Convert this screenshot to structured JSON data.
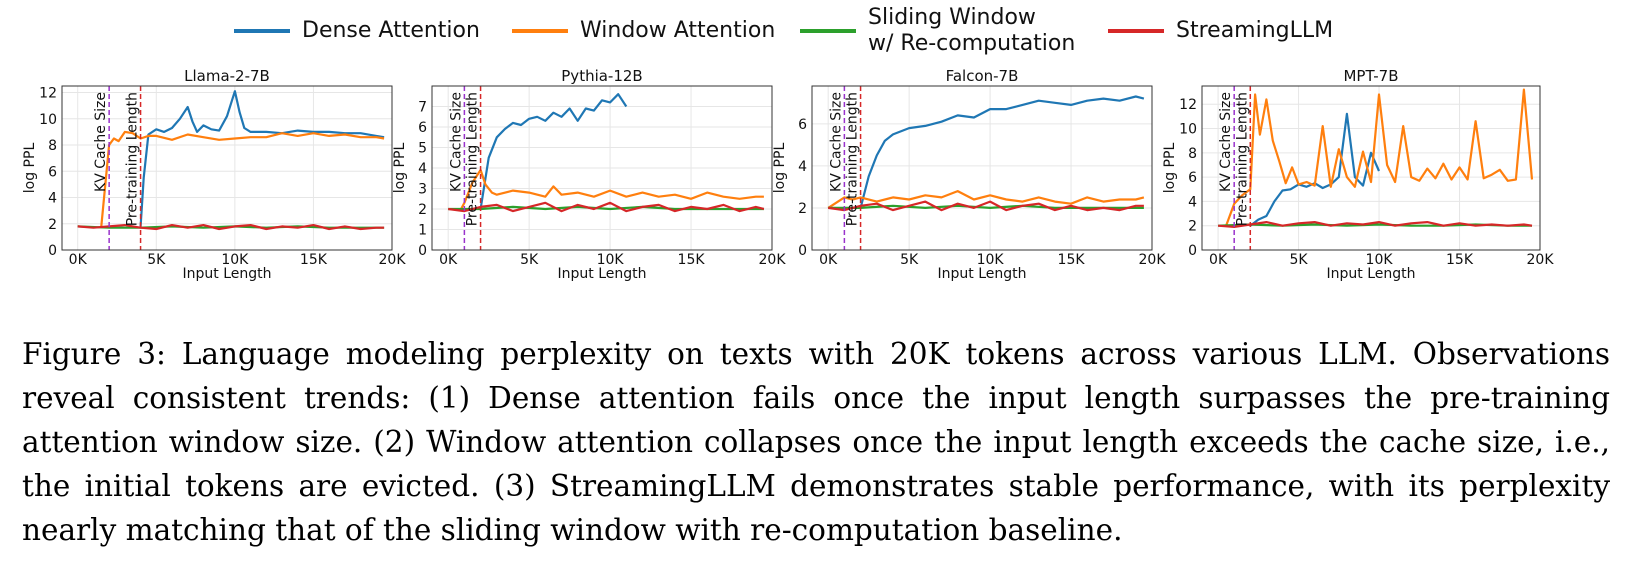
{
  "legend": [
    {
      "label": "Dense Attention",
      "color": "#1f77b4"
    },
    {
      "label": "Window Attention",
      "color": "#ff7f0e"
    },
    {
      "label": "Sliding Window\nw/ Re-computation",
      "color": "#2ca02c"
    },
    {
      "label": "StreamingLLM",
      "color": "#d62728"
    }
  ],
  "chart_data": [
    {
      "type": "line",
      "title": "Llama-2-7B",
      "xlabel": "Input Length",
      "ylabel": "log PPL",
      "xlim": [
        -1000,
        20000
      ],
      "ylim": [
        0,
        12.5
      ],
      "xticks": [
        0,
        5000,
        10000,
        15000,
        20000
      ],
      "xtick_labels": [
        "0K",
        "5K",
        "10K",
        "15K",
        "20K"
      ],
      "yticks": [
        0,
        2,
        4,
        6,
        8,
        10,
        12
      ],
      "ytick_labels": [
        "0",
        "2",
        "4",
        "6",
        "8",
        "10",
        "12"
      ],
      "grid": true,
      "vlines": [
        {
          "x": 2000,
          "label": "KV Cache Size",
          "color": "#9933cc"
        },
        {
          "x": 4000,
          "label": "Pre-training Length",
          "color": "#d62728"
        }
      ],
      "series": [
        {
          "name": "Dense Attention",
          "color": "#1f77b4",
          "x": [
            4000,
            4200,
            4500,
            5000,
            5500,
            6000,
            6500,
            7000,
            7300,
            7600,
            8000,
            8500,
            9000,
            9500,
            10000,
            10300,
            10600,
            11000,
            12000,
            13000,
            14000,
            15000,
            16000,
            17000,
            18000,
            19000,
            19500
          ],
          "y": [
            1.8,
            5.5,
            8.8,
            9.2,
            9.0,
            9.3,
            10.0,
            10.9,
            9.8,
            9.0,
            9.5,
            9.2,
            9.1,
            10.2,
            12.1,
            10.5,
            9.3,
            9.0,
            9.0,
            8.9,
            9.1,
            9.0,
            9.0,
            8.9,
            8.9,
            8.7,
            8.6
          ]
        },
        {
          "name": "Window Attention",
          "color": "#ff7f0e",
          "x": [
            1500,
            2000,
            2300,
            2600,
            3000,
            3500,
            4000,
            4500,
            5000,
            6000,
            7000,
            8000,
            9000,
            10000,
            11000,
            12000,
            13000,
            14000,
            15000,
            16000,
            17000,
            18000,
            19000,
            19500
          ],
          "y": [
            1.8,
            8.0,
            8.5,
            8.3,
            9.0,
            8.9,
            8.5,
            8.7,
            8.7,
            8.4,
            8.8,
            8.6,
            8.4,
            8.5,
            8.6,
            8.6,
            8.9,
            8.7,
            8.9,
            8.7,
            8.8,
            8.6,
            8.6,
            8.5
          ]
        },
        {
          "name": "Sliding Window w/ Re-computation",
          "color": "#2ca02c",
          "x": [
            0,
            2000,
            4000,
            6000,
            8000,
            10000,
            12000,
            14000,
            16000,
            18000,
            19500
          ],
          "y": [
            1.8,
            1.7,
            1.7,
            1.8,
            1.7,
            1.8,
            1.7,
            1.8,
            1.7,
            1.7,
            1.7
          ]
        },
        {
          "name": "StreamingLLM",
          "color": "#d62728",
          "x": [
            0,
            1000,
            2000,
            3000,
            4000,
            5000,
            6000,
            7000,
            8000,
            9000,
            10000,
            11000,
            12000,
            13000,
            14000,
            15000,
            16000,
            17000,
            18000,
            19000,
            19500
          ],
          "y": [
            1.8,
            1.7,
            1.8,
            1.9,
            1.7,
            1.6,
            1.9,
            1.7,
            1.9,
            1.6,
            1.8,
            1.9,
            1.6,
            1.8,
            1.7,
            1.9,
            1.6,
            1.8,
            1.6,
            1.7,
            1.7
          ]
        }
      ]
    },
    {
      "type": "line",
      "title": "Pythia-12B",
      "xlabel": "Input Length",
      "ylabel": "log PPL",
      "xlim": [
        -1000,
        20000
      ],
      "ylim": [
        0,
        8
      ],
      "xticks": [
        0,
        5000,
        10000,
        15000,
        20000
      ],
      "xtick_labels": [
        "0K",
        "5K",
        "10K",
        "15K",
        "20K"
      ],
      "yticks": [
        0,
        1,
        2,
        3,
        4,
        5,
        6,
        7
      ],
      "ytick_labels": [
        "0",
        "1",
        "2",
        "3",
        "4",
        "5",
        "6",
        "7"
      ],
      "grid": true,
      "vlines": [
        {
          "x": 1000,
          "label": "KV Cache Size",
          "color": "#9933cc"
        },
        {
          "x": 2000,
          "label": "Pre-training Length",
          "color": "#d62728"
        }
      ],
      "series": [
        {
          "name": "Dense Attention",
          "color": "#1f77b4",
          "x": [
            2000,
            2500,
            3000,
            3500,
            4000,
            4500,
            5000,
            5500,
            6000,
            6500,
            7000,
            7500,
            8000,
            8500,
            9000,
            9500,
            10000,
            10500,
            11000
          ],
          "y": [
            2.0,
            4.5,
            5.5,
            5.9,
            6.2,
            6.1,
            6.4,
            6.5,
            6.3,
            6.7,
            6.5,
            6.9,
            6.3,
            6.9,
            6.8,
            7.3,
            7.2,
            7.6,
            7.0
          ]
        },
        {
          "name": "Window Attention",
          "color": "#ff7f0e",
          "x": [
            800,
            1000,
            1500,
            2000,
            2300,
            2700,
            3000,
            4000,
            5000,
            6000,
            6500,
            7000,
            8000,
            9000,
            10000,
            11000,
            12000,
            13000,
            14000,
            15000,
            16000,
            17000,
            18000,
            19000,
            19500
          ],
          "y": [
            2.0,
            2.3,
            3.3,
            3.9,
            3.2,
            2.8,
            2.7,
            2.9,
            2.8,
            2.6,
            3.1,
            2.7,
            2.8,
            2.6,
            2.9,
            2.6,
            2.8,
            2.6,
            2.7,
            2.5,
            2.8,
            2.6,
            2.5,
            2.6,
            2.6
          ]
        },
        {
          "name": "Sliding Window w/ Re-computation",
          "color": "#2ca02c",
          "x": [
            0,
            2000,
            4000,
            6000,
            8000,
            10000,
            12000,
            14000,
            16000,
            18000,
            19500
          ],
          "y": [
            2.0,
            2.0,
            2.1,
            2.0,
            2.1,
            2.0,
            2.1,
            2.0,
            2.0,
            2.0,
            2.0
          ]
        },
        {
          "name": "StreamingLLM",
          "color": "#d62728",
          "x": [
            0,
            1000,
            2000,
            3000,
            4000,
            5000,
            6000,
            7000,
            8000,
            9000,
            10000,
            11000,
            12000,
            13000,
            14000,
            15000,
            16000,
            17000,
            18000,
            19000,
            19500
          ],
          "y": [
            2.0,
            1.9,
            2.1,
            2.2,
            1.9,
            2.1,
            2.3,
            1.9,
            2.2,
            2.0,
            2.3,
            1.9,
            2.1,
            2.2,
            1.9,
            2.1,
            2.0,
            2.2,
            1.9,
            2.1,
            2.0
          ]
        }
      ]
    },
    {
      "type": "line",
      "title": "Falcon-7B",
      "xlabel": "Input Length",
      "ylabel": "log PPL",
      "xlim": [
        -1000,
        20000
      ],
      "ylim": [
        0,
        7.8
      ],
      "xticks": [
        0,
        5000,
        10000,
        15000,
        20000
      ],
      "xtick_labels": [
        "0K",
        "5K",
        "10K",
        "15K",
        "20K"
      ],
      "yticks": [
        0,
        2,
        4,
        6
      ],
      "ytick_labels": [
        "0",
        "2",
        "4",
        "6"
      ],
      "grid": true,
      "vlines": [
        {
          "x": 1000,
          "label": "KV Cache Size",
          "color": "#9933cc"
        },
        {
          "x": 2000,
          "label": "Pre-training Length",
          "color": "#d62728"
        }
      ],
      "series": [
        {
          "name": "Dense Attention",
          "color": "#1f77b4",
          "x": [
            2000,
            2500,
            3000,
            3500,
            4000,
            5000,
            6000,
            7000,
            8000,
            9000,
            10000,
            11000,
            12000,
            13000,
            14000,
            15000,
            16000,
            17000,
            18000,
            19000,
            19500
          ],
          "y": [
            2.0,
            3.5,
            4.5,
            5.2,
            5.5,
            5.8,
            5.9,
            6.1,
            6.4,
            6.3,
            6.7,
            6.7,
            6.9,
            7.1,
            7.0,
            6.9,
            7.1,
            7.2,
            7.1,
            7.3,
            7.2
          ]
        },
        {
          "name": "Window Attention",
          "color": "#ff7f0e",
          "x": [
            0,
            1000,
            1500,
            2000,
            3000,
            4000,
            5000,
            6000,
            7000,
            8000,
            9000,
            10000,
            11000,
            12000,
            13000,
            14000,
            15000,
            16000,
            17000,
            18000,
            19000,
            19500
          ],
          "y": [
            2.0,
            2.5,
            2.4,
            2.5,
            2.3,
            2.5,
            2.4,
            2.6,
            2.5,
            2.8,
            2.4,
            2.6,
            2.4,
            2.3,
            2.5,
            2.3,
            2.2,
            2.5,
            2.3,
            2.4,
            2.4,
            2.5
          ]
        },
        {
          "name": "Sliding Window w/ Re-computation",
          "color": "#2ca02c",
          "x": [
            0,
            2000,
            4000,
            6000,
            8000,
            10000,
            12000,
            14000,
            16000,
            18000,
            19500
          ],
          "y": [
            2.0,
            2.0,
            2.1,
            2.0,
            2.1,
            2.0,
            2.1,
            2.0,
            2.0,
            2.0,
            2.0
          ]
        },
        {
          "name": "StreamingLLM",
          "color": "#d62728",
          "x": [
            0,
            1000,
            2000,
            3000,
            4000,
            5000,
            6000,
            7000,
            8000,
            9000,
            10000,
            11000,
            12000,
            13000,
            14000,
            15000,
            16000,
            17000,
            18000,
            19000,
            19500
          ],
          "y": [
            2.0,
            1.9,
            2.1,
            2.2,
            1.9,
            2.1,
            2.3,
            1.9,
            2.2,
            2.0,
            2.3,
            1.9,
            2.1,
            2.2,
            1.9,
            2.1,
            1.9,
            2.0,
            1.9,
            2.1,
            2.1
          ]
        }
      ]
    },
    {
      "type": "line",
      "title": "MPT-7B",
      "xlabel": "Input Length",
      "ylabel": "log PPL",
      "xlim": [
        -1000,
        20000
      ],
      "ylim": [
        0,
        13.5
      ],
      "xticks": [
        0,
        5000,
        10000,
        15000,
        20000
      ],
      "xtick_labels": [
        "0K",
        "5K",
        "10K",
        "15K",
        "20K"
      ],
      "yticks": [
        0,
        2,
        4,
        6,
        8,
        10,
        12
      ],
      "ytick_labels": [
        "0",
        "2",
        "4",
        "6",
        "8",
        "10",
        "12"
      ],
      "grid": true,
      "vlines": [
        {
          "x": 1000,
          "label": "KV Cache Size",
          "color": "#9933cc"
        },
        {
          "x": 2000,
          "label": "Pre-training Length",
          "color": "#d62728"
        }
      ],
      "series": [
        {
          "name": "Dense Attention",
          "color": "#1f77b4",
          "x": [
            2000,
            2500,
            3000,
            3500,
            4000,
            4500,
            5000,
            5500,
            6000,
            6500,
            7000,
            7500,
            8000,
            8500,
            9000,
            9500,
            10000
          ],
          "y": [
            2.0,
            2.5,
            2.8,
            4.0,
            4.9,
            5.0,
            5.4,
            5.2,
            5.5,
            5.1,
            5.4,
            6.0,
            11.2,
            6.0,
            5.3,
            8.0,
            6.5
          ]
        },
        {
          "name": "Window Attention",
          "color": "#ff7f0e",
          "x": [
            500,
            1000,
            1500,
            2000,
            2300,
            2600,
            3000,
            3400,
            3800,
            4200,
            4600,
            5000,
            5500,
            6000,
            6500,
            7000,
            7500,
            8000,
            8500,
            9000,
            9500,
            10000,
            10500,
            11000,
            11500,
            12000,
            12500,
            13000,
            13500,
            14000,
            14500,
            15000,
            15500,
            16000,
            16500,
            17000,
            17500,
            18000,
            18500,
            19000,
            19500
          ],
          "y": [
            2.0,
            3.8,
            4.5,
            5.0,
            12.8,
            9.5,
            12.4,
            9.0,
            7.3,
            5.5,
            6.8,
            5.4,
            5.6,
            5.3,
            10.2,
            5.2,
            8.3,
            6.0,
            5.2,
            8.1,
            5.6,
            12.8,
            7.0,
            5.6,
            10.2,
            6.0,
            5.7,
            6.7,
            5.9,
            7.1,
            5.8,
            6.8,
            5.8,
            10.6,
            5.9,
            6.2,
            6.6,
            5.7,
            5.8,
            13.2,
            5.8
          ]
        },
        {
          "name": "Sliding Window w/ Re-computation",
          "color": "#2ca02c",
          "x": [
            0,
            2000,
            4000,
            6000,
            8000,
            10000,
            12000,
            14000,
            16000,
            18000,
            19500
          ],
          "y": [
            2.0,
            2.1,
            2.0,
            2.1,
            2.0,
            2.1,
            2.0,
            2.0,
            2.1,
            2.0,
            2.0
          ]
        },
        {
          "name": "StreamingLLM",
          "color": "#d62728",
          "x": [
            0,
            1000,
            2000,
            3000,
            4000,
            5000,
            6000,
            7000,
            8000,
            9000,
            10000,
            11000,
            12000,
            13000,
            14000,
            15000,
            16000,
            17000,
            18000,
            19000,
            19500
          ],
          "y": [
            2.0,
            1.9,
            2.1,
            2.3,
            2.0,
            2.2,
            2.3,
            2.0,
            2.2,
            2.1,
            2.3,
            2.0,
            2.2,
            2.3,
            2.0,
            2.2,
            2.0,
            2.1,
            2.0,
            2.1,
            2.0
          ]
        }
      ]
    }
  ],
  "caption": "Figure 3: Language modeling perplexity on texts with 20K tokens across various LLM. Observations reveal consistent trends: (1) Dense attention fails once the input length surpasses the pre-training attention window size. (2) Window attention collapses once the input length exceeds the cache size, i.e., the initial tokens are evicted. (3) StreamingLLM demonstrates stable performance, with its perplexity nearly matching that of the sliding window with re-computation baseline."
}
